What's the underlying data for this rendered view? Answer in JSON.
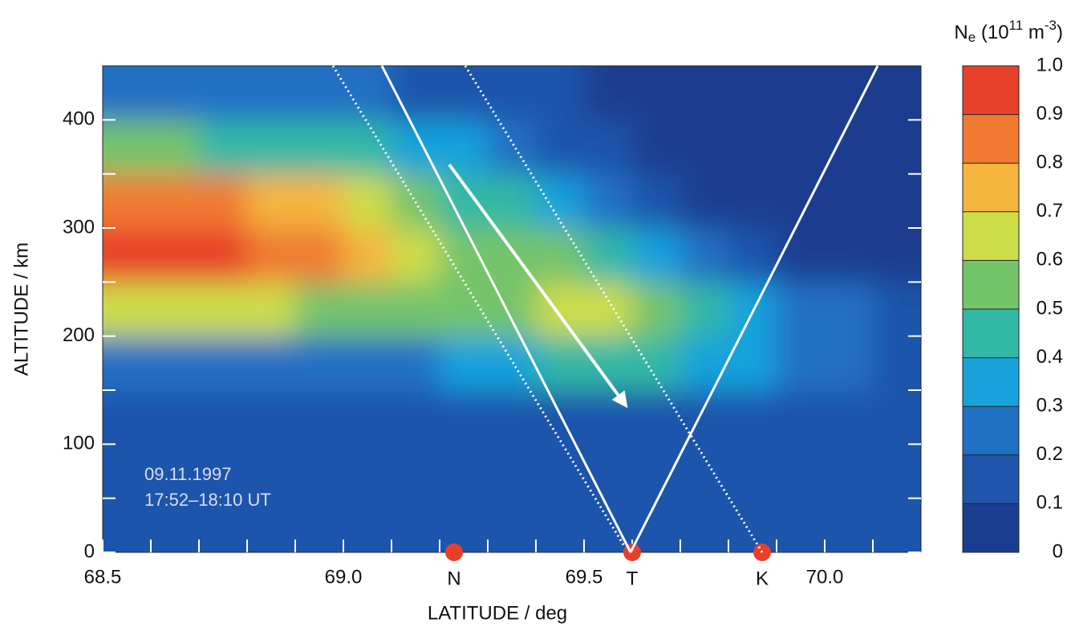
{
  "chart_data": {
    "type": "heatmap",
    "xlabel": "LATITUDE / deg",
    "ylabel": "ALTITUDE / km",
    "xlim": [
      68.5,
      70.2
    ],
    "ylim": [
      0,
      450
    ],
    "xticks": [
      68.5,
      {
        "value": 69,
        "label": "69.0"
      },
      69.5,
      {
        "value": 70,
        "label": "70.0"
      }
    ],
    "xminorticks": [
      68.6,
      68.7,
      68.8,
      68.9,
      69.1,
      69.2,
      69.3,
      69.4,
      69.6,
      69.7,
      69.8,
      69.9,
      70.1
    ],
    "yticks": [
      0,
      100,
      200,
      300,
      400
    ],
    "yminorticks": [
      50,
      150,
      250,
      350
    ],
    "x": [
      68.55,
      68.65,
      68.75,
      68.85,
      68.95,
      69.05,
      69.15,
      69.25,
      69.35,
      69.45,
      69.55,
      69.65,
      69.75,
      69.85,
      69.95,
      70.05,
      70.15
    ],
    "y": [
      25,
      75,
      125,
      175,
      225,
      275,
      325,
      375,
      425
    ],
    "z": [
      [
        0.1,
        0.1,
        0.1,
        0.1,
        0.1,
        0.1,
        0.1,
        0.1,
        0.1,
        0.1,
        0.1,
        0.1,
        0.1,
        0.1,
        0.1,
        0.1,
        0.1
      ],
      [
        0.1,
        0.1,
        0.1,
        0.1,
        0.1,
        0.1,
        0.1,
        0.1,
        0.1,
        0.1,
        0.1,
        0.1,
        0.1,
        0.1,
        0.1,
        0.1,
        0.1
      ],
      [
        0.12,
        0.12,
        0.12,
        0.12,
        0.12,
        0.12,
        0.12,
        0.13,
        0.14,
        0.15,
        0.15,
        0.15,
        0.14,
        0.14,
        0.13,
        0.12,
        0.12
      ],
      [
        0.2,
        0.2,
        0.2,
        0.2,
        0.2,
        0.22,
        0.25,
        0.3,
        0.35,
        0.4,
        0.42,
        0.4,
        0.35,
        0.3,
        0.25,
        0.2,
        0.18
      ],
      [
        0.6,
        0.6,
        0.6,
        0.6,
        0.58,
        0.55,
        0.55,
        0.55,
        0.58,
        0.6,
        0.62,
        0.55,
        0.45,
        0.35,
        0.28,
        0.22,
        0.18
      ],
      [
        0.93,
        0.93,
        0.9,
        0.88,
        0.8,
        0.7,
        0.6,
        0.55,
        0.52,
        0.5,
        0.45,
        0.35,
        0.22,
        0.12,
        0.08,
        0.08,
        0.08
      ],
      [
        0.85,
        0.85,
        0.82,
        0.78,
        0.7,
        0.6,
        0.5,
        0.45,
        0.4,
        0.32,
        0.22,
        0.14,
        0.08,
        0.06,
        0.05,
        0.05,
        0.05
      ],
      [
        0.5,
        0.5,
        0.48,
        0.45,
        0.42,
        0.4,
        0.35,
        0.3,
        0.25,
        0.18,
        0.12,
        0.08,
        0.06,
        0.05,
        0.05,
        0.05,
        0.05
      ],
      [
        0.2,
        0.2,
        0.2,
        0.2,
        0.2,
        0.2,
        0.18,
        0.15,
        0.12,
        0.1,
        0.08,
        0.06,
        0.05,
        0.05,
        0.05,
        0.05,
        0.05
      ]
    ],
    "colorbar": {
      "title": {
        "base": "N",
        "sub": "e",
        "text1": " (10",
        "sup1": "11",
        "text2": " m",
        "sup2": "-3",
        "text3": ")"
      },
      "ticks": [
        0,
        0.1,
        0.2,
        0.3,
        0.4,
        0.5,
        0.6,
        0.7,
        0.8,
        0.9,
        {
          "value": 1,
          "label": "1.0"
        }
      ],
      "colors": [
        "#1b3d8f",
        "#1f55ab",
        "#2070c4",
        "#18a2dc",
        "#33b8a6",
        "#74c46a",
        "#cddd48",
        "#f5b53c",
        "#ef7a30",
        "#e8412a"
      ]
    },
    "stations": [
      {
        "label": "N",
        "lat": 69.23,
        "color": "#e8402a"
      },
      {
        "label": "T",
        "lat": 69.6,
        "color": "#e8402a"
      },
      {
        "label": "K",
        "lat": 69.87,
        "color": "#e8402a"
      }
    ],
    "annotations": [
      "09.11.1997",
      "17:52–18:10 UT"
    ]
  }
}
